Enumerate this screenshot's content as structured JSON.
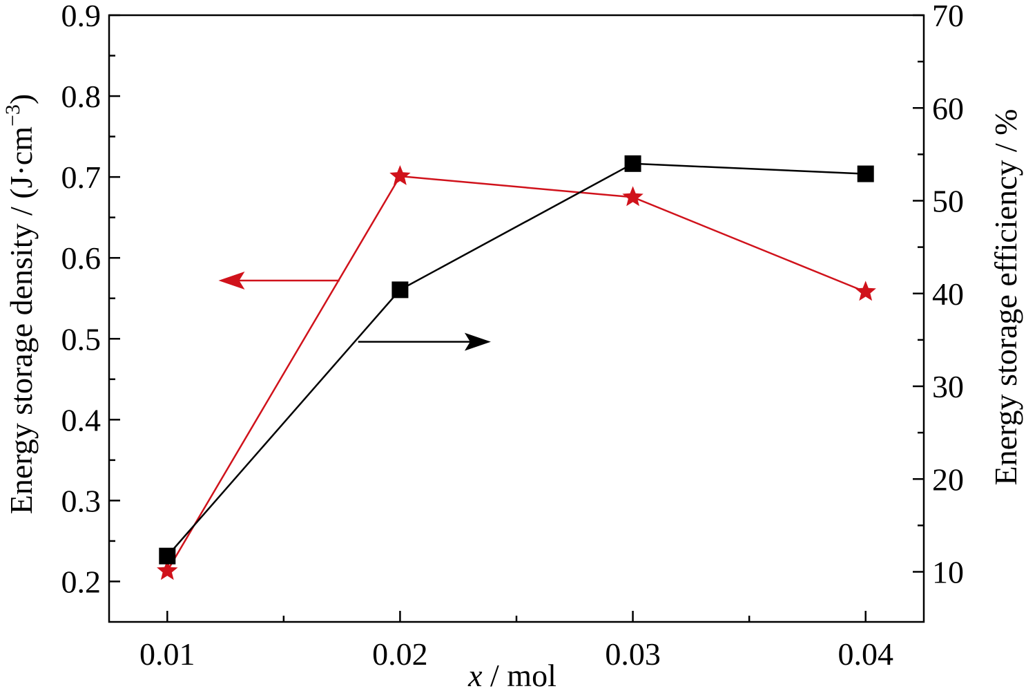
{
  "chart_data": {
    "type": "line",
    "x": [
      0.01,
      0.02,
      0.03,
      0.04
    ],
    "x_tick_labels": [
      "0.01",
      "0.02",
      "0.03",
      "0.04"
    ],
    "xlim": [
      0.0075,
      0.0425
    ],
    "xlabel_var": "x",
    "xlabel_unit": " / mol",
    "left_axis": {
      "label_main": "Energy storage density / (J·cm",
      "label_sup": "−3",
      "label_close": ")",
      "ylim": [
        0.15,
        0.9
      ],
      "ticks": [
        0.2,
        0.3,
        0.4,
        0.5,
        0.6,
        0.7,
        0.8,
        0.9
      ],
      "tick_labels": [
        "0.2",
        "0.3",
        "0.4",
        "0.5",
        "0.6",
        "0.7",
        "0.8",
        "0.9"
      ]
    },
    "right_axis": {
      "label": "Energy storage efficiency / %",
      "ylim": [
        4.6,
        70
      ],
      "ticks": [
        10,
        20,
        30,
        40,
        50,
        60,
        70
      ],
      "tick_labels": [
        "10",
        "20",
        "30",
        "40",
        "50",
        "60",
        "70"
      ]
    },
    "series": [
      {
        "axis": "left",
        "marker": "star",
        "color": "#d0121b",
        "values": [
          0.213,
          0.701,
          0.675,
          0.558
        ]
      },
      {
        "axis": "right",
        "marker": "square",
        "color": "#000000",
        "values": [
          11.7,
          40.4,
          54.0,
          52.9
        ]
      }
    ],
    "annotations": [
      {
        "type": "arrow",
        "direction": "left",
        "series_axis": "left",
        "color": "#d0121b"
      },
      {
        "type": "arrow",
        "direction": "right",
        "series_axis": "right",
        "color": "#000000"
      }
    ],
    "grid": false,
    "legend": "none"
  }
}
